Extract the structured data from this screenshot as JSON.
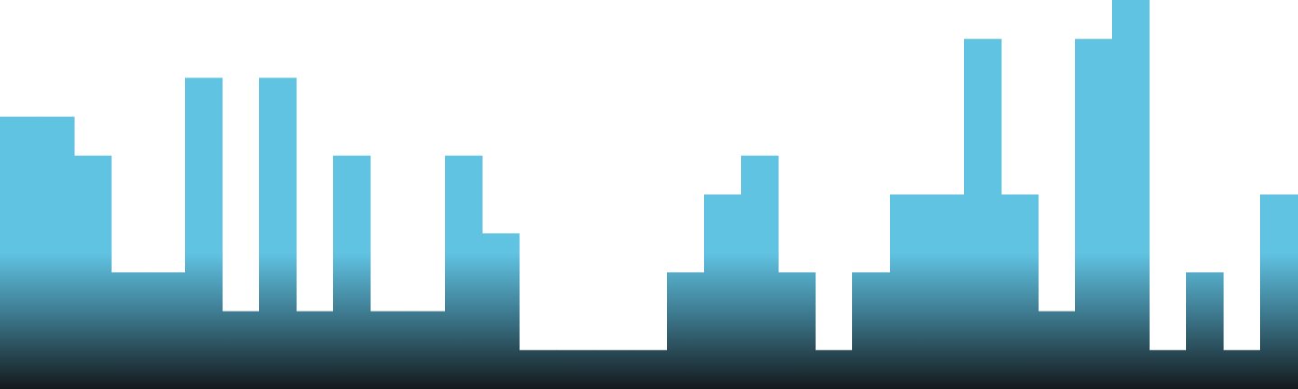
{
  "chart_data": {
    "type": "bar",
    "values": [
      7,
      7,
      6,
      3,
      3,
      8,
      2,
      8,
      2,
      6,
      2,
      2,
      6,
      4,
      1,
      1,
      1,
      1,
      3,
      5,
      6,
      3,
      1,
      3,
      5,
      5,
      9,
      5,
      2,
      9,
      10,
      1,
      3,
      1,
      5
    ],
    "ylim": [
      0,
      10
    ],
    "grid": false,
    "legend": "none",
    "colors": {
      "bar": "#60c3e2",
      "bar_gradient_mid": "#3f7d93",
      "bar_gradient_bottom": "#141a1d",
      "background": "#ffffff"
    }
  }
}
